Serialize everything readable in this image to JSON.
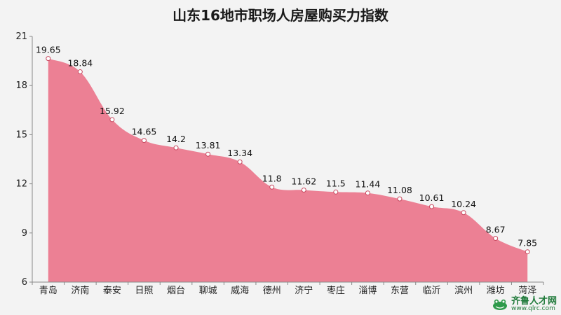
{
  "chart_data": {
    "type": "area",
    "title": "山东16地市职场人房屋购买力指数",
    "categories": [
      "青岛",
      "济南",
      "泰安",
      "日照",
      "烟台",
      "聊城",
      "威海",
      "德州",
      "济宁",
      "枣庄",
      "淄博",
      "东营",
      "临沂",
      "滨州",
      "潍坊",
      "菏泽"
    ],
    "values": [
      19.65,
      18.84,
      15.92,
      14.65,
      14.2,
      13.81,
      13.34,
      11.8,
      11.62,
      11.5,
      11.44,
      11.08,
      10.61,
      10.24,
      8.67,
      7.85
    ],
    "value_labels": [
      "19.65",
      "18.84",
      "15.92",
      "14.65",
      "14.2",
      "13.81",
      "13.34",
      "11.8",
      "11.62",
      "11.5",
      "11.44",
      "11.08",
      "10.61",
      "10.24",
      "8.67",
      "7.85"
    ],
    "ylim": [
      6,
      21
    ],
    "yticks": [
      6,
      9,
      12,
      15,
      18,
      21
    ],
    "ytick_labels": [
      "6",
      "9",
      "12",
      "15",
      "18",
      "21"
    ],
    "grid": false,
    "colors": {
      "fill": "#ec8094",
      "marker_fill": "#ffffff",
      "marker_stroke": "#c8485f",
      "axis": "#888888"
    }
  },
  "watermark": {
    "name": "齐鲁人才网",
    "url": "www.qlrc.com"
  }
}
